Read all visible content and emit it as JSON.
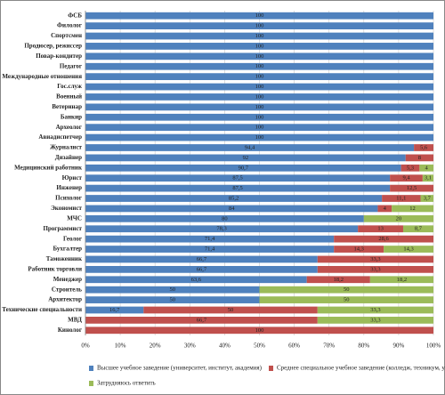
{
  "chart_data": {
    "type": "stacked-bar-horizontal",
    "categories": [
      "ФСБ",
      "Филолог",
      "Спортсмен",
      "Продюсер, режиссер",
      "Повар-кондитер",
      "Педагог",
      "Международные отношения",
      "Гос.служ",
      "Военный",
      "Ветеринар",
      "Банкир",
      "Археолог",
      "Авиадиспетчер",
      "Журналист",
      "Дизайнер",
      "Медицинский работник",
      "Юрист",
      "Инженер",
      "Психолог",
      "Экономист",
      "МЧС",
      "Программист",
      "Геолог",
      "Бухгалтер",
      "Таможенник",
      "Работник торговли",
      "Менеджер",
      "Строитель",
      "Архитектор",
      "Технические специальности",
      "МВД",
      "Кинолог"
    ],
    "series": [
      {
        "name": "Высшее учебное заведение (университет, институт, академия)",
        "color": "#4f81bd",
        "values": [
          100,
          100,
          100,
          100,
          100,
          100,
          100,
          100,
          100,
          100,
          100,
          100,
          100,
          94.4,
          92,
          90.7,
          87.5,
          87.5,
          85.2,
          84,
          80,
          78.3,
          71.4,
          71.4,
          66.7,
          66.7,
          63.6,
          50,
          50,
          16.7,
          null,
          null
        ],
        "value_labels": [
          "100",
          "100",
          "100",
          "100",
          "100",
          "100",
          "100",
          "100",
          "100",
          "100",
          "100",
          "100",
          "100",
          "94,4",
          "92",
          "90,7",
          "87,5",
          "87,5",
          "85,2",
          "84",
          "80",
          "78,3",
          "71,4",
          "71,4",
          "66,7",
          "66,7",
          "63,6",
          "50",
          "50",
          "16,7",
          null,
          null
        ]
      },
      {
        "name": "Среднее специальное учебное заведение (колледж, техникум, училищ",
        "color": "#c0504d",
        "values": [
          null,
          null,
          null,
          null,
          null,
          null,
          null,
          null,
          null,
          null,
          null,
          null,
          null,
          5.6,
          8,
          5.3,
          9.4,
          12.5,
          11.1,
          4,
          null,
          13,
          28.6,
          14.3,
          33.3,
          33.3,
          18.2,
          null,
          null,
          50,
          66.7,
          100
        ],
        "value_labels": [
          null,
          null,
          null,
          null,
          null,
          null,
          null,
          null,
          null,
          null,
          null,
          null,
          null,
          "5,6",
          "8",
          "5,3",
          "9,4",
          "12,5",
          "11,1",
          "4",
          null,
          "13",
          "28,6",
          "14,3",
          "33,3",
          "33,3",
          "18,2",
          null,
          null,
          "50",
          "66,7",
          "100"
        ]
      },
      {
        "name": "Затрудняюсь ответить",
        "color": "#9bbb59",
        "values": [
          null,
          null,
          null,
          null,
          null,
          null,
          null,
          null,
          null,
          null,
          null,
          null,
          null,
          null,
          null,
          4,
          3.1,
          null,
          3.7,
          12,
          20,
          8.7,
          null,
          14.3,
          null,
          null,
          18.2,
          50,
          50,
          33.3,
          33.3,
          null
        ],
        "value_labels": [
          null,
          null,
          null,
          null,
          null,
          null,
          null,
          null,
          null,
          null,
          null,
          null,
          null,
          null,
          null,
          "4",
          "3,1",
          null,
          "3,7",
          "12",
          "20",
          "8,7",
          null,
          "14,3",
          null,
          null,
          "18,2",
          "50",
          "50",
          "33,3",
          "33,3",
          null
        ]
      }
    ],
    "xlim": [
      0,
      100
    ],
    "xticks": [
      {
        "value": 0,
        "label": "0%"
      },
      {
        "value": 10,
        "label": "10%"
      },
      {
        "value": 20,
        "label": "20%"
      },
      {
        "value": 30,
        "label": "30%"
      },
      {
        "value": 40,
        "label": "40%"
      },
      {
        "value": 50,
        "label": "50%"
      },
      {
        "value": 60,
        "label": "60%"
      },
      {
        "value": 70,
        "label": "70%"
      },
      {
        "value": 80,
        "label": "80%"
      },
      {
        "value": 90,
        "label": "90%"
      },
      {
        "value": 100,
        "label": "100%"
      }
    ],
    "grid": true
  }
}
